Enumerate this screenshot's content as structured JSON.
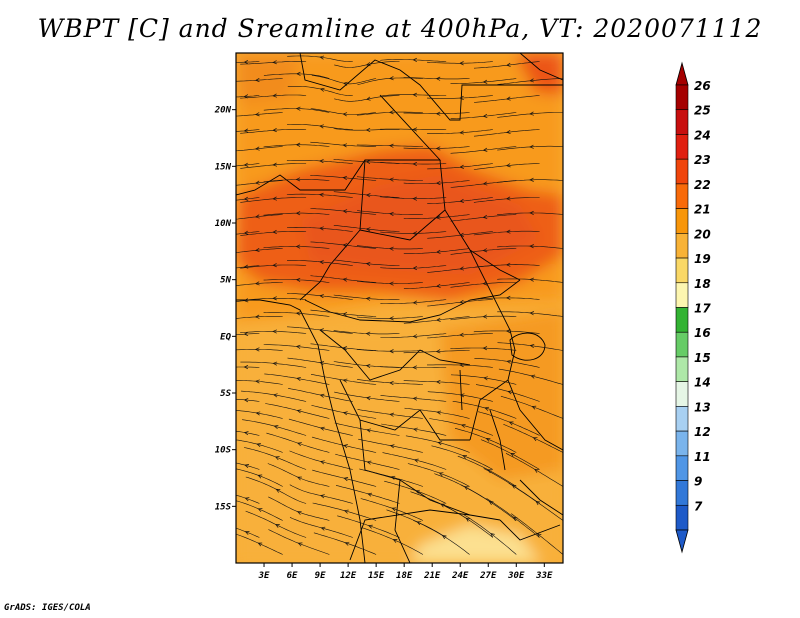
{
  "title": "WBPT [C] and Sreamline at 400hPa, VT: 2020071112",
  "footer": "GrADS: IGES/COLA",
  "map": {
    "lon_range": [
      0,
      35
    ],
    "lat_range": [
      -20,
      25
    ],
    "lon_ticks": [
      "3E",
      "6E",
      "9E",
      "12E",
      "15E",
      "18E",
      "21E",
      "24E",
      "27E",
      "30E",
      "33E"
    ],
    "lat_ticks": [
      "20N",
      "15N",
      "10N",
      "5N",
      "EQ",
      "5S",
      "10S",
      "15S"
    ]
  },
  "colorbar": {
    "labels": [
      "26",
      "25",
      "24",
      "23",
      "22",
      "21",
      "20",
      "19",
      "18",
      "17",
      "16",
      "15",
      "14",
      "13",
      "12",
      "11",
      "9",
      "7"
    ],
    "colors": [
      "#a50000",
      "#c80f0f",
      "#e01f10",
      "#f0450c",
      "#f86a0a",
      "#f8960a",
      "#f8b236",
      "#fad866",
      "#fdf6b0",
      "#33b333",
      "#66cc66",
      "#aee8a8",
      "#e6f6e6",
      "#a8d0f2",
      "#7ab4ec",
      "#5096e6",
      "#3278d8",
      "#1e5ac8"
    ],
    "top_color": "#a50000",
    "bottom_color": "#1e5ac8"
  }
}
